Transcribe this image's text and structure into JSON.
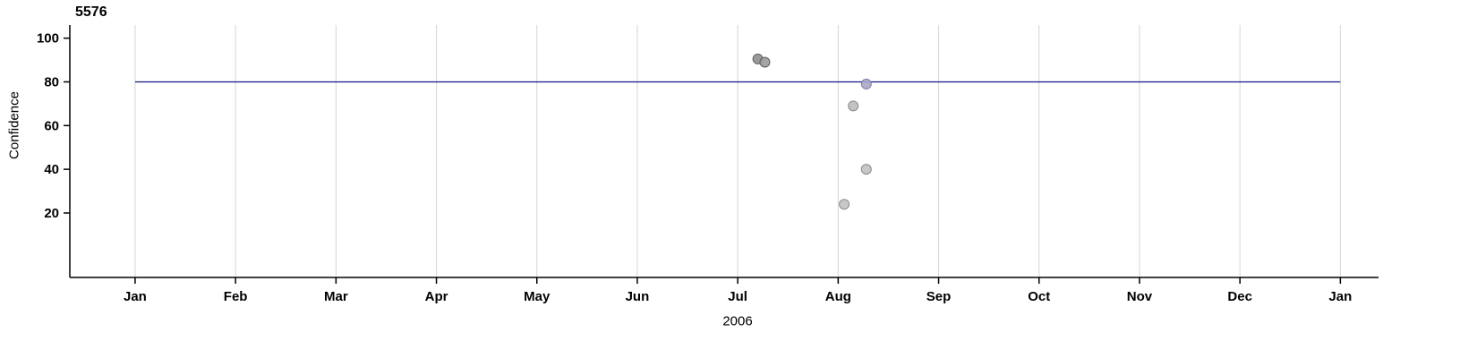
{
  "page": {
    "background": "#ffffff"
  },
  "chart_data": {
    "type": "scatter",
    "title": "5576",
    "ylabel": "Confidence",
    "xlabel": "2006",
    "xtick_labels": [
      "Jan",
      "Feb",
      "Mar",
      "Apr",
      "May",
      "Jun",
      "Jul",
      "Aug",
      "Sep",
      "Oct",
      "Nov",
      "Dec",
      "Jan"
    ],
    "yticks": [
      20,
      40,
      60,
      80,
      100
    ],
    "x_unit": "month_index_from_jan_2006",
    "xlim": [
      -0.65,
      12.38
    ],
    "ylim": [
      -9.5,
      106
    ],
    "grid": true,
    "grid_color": "#d6d6d6",
    "axis_color": "#000000",
    "legend": "none",
    "threshold_line": {
      "y": 80,
      "x1": 0,
      "x2": 12,
      "color": "#16168b"
    },
    "points": [
      {
        "x": 6.2,
        "y": 90.5,
        "fill": "#8f8f8f",
        "stroke": "#5f5f5f"
      },
      {
        "x": 6.27,
        "y": 89,
        "fill": "#9a9a9a",
        "stroke": "#5f5f5f"
      },
      {
        "x": 7.06,
        "y": 24,
        "fill": "#c2c2c2",
        "stroke": "#8a8a8a"
      },
      {
        "x": 7.15,
        "y": 69,
        "fill": "#bdbdbd",
        "stroke": "#8a8a8a"
      },
      {
        "x": 7.28,
        "y": 79,
        "fill": "#a9a9c8",
        "stroke": "#7d7da8"
      },
      {
        "x": 7.28,
        "y": 40,
        "fill": "#c2c2c2",
        "stroke": "#8a8a8a"
      }
    ]
  }
}
